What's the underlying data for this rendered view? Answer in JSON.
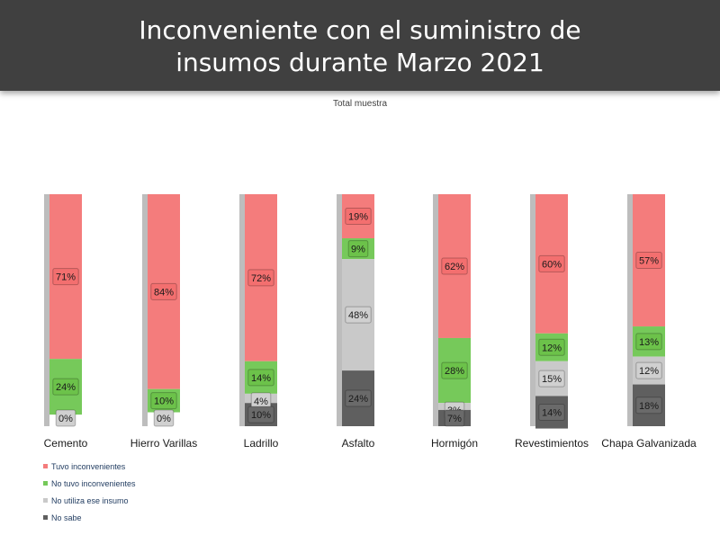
{
  "header": {
    "title": "Inconveniente con el suministro de\ninsumos durante Marzo 2021",
    "subtitle": "Total muestra"
  },
  "colors": {
    "tuvo": "#f47c7c",
    "tuvo_label_bg": "#f36f6f",
    "no_tuvo": "#76c95a",
    "no_tuvo_label_bg": "#6cc24a",
    "no_utiliza": "#c9c9c9",
    "no_utiliza_label_bg": "#d0d0d0",
    "no_sabe": "#5f5f5f",
    "no_sabe_label_bg": "#6a6a6a",
    "header_bg": "#404040"
  },
  "chart_data": {
    "type": "bar",
    "stacked": true,
    "percent": true,
    "categories": [
      "Cemento",
      "Hierro Varillas",
      "Ladrillo",
      "Asfalto",
      "Hormigón",
      "Revestimientos",
      "Chapa Galvanizada"
    ],
    "series": [
      {
        "name": "Tuvo inconvenientes",
        "values": [
          71,
          84,
          72,
          19,
          62,
          60,
          57
        ]
      },
      {
        "name": "No tuvo inconvenientes",
        "values": [
          24,
          10,
          14,
          9,
          28,
          12,
          13
        ]
      },
      {
        "name": "No utiliza ese insumo",
        "values": [
          0,
          0,
          4,
          48,
          3,
          15,
          12
        ]
      },
      {
        "name": "No sabe",
        "values": [
          null,
          null,
          10,
          24,
          7,
          14,
          18
        ]
      }
    ],
    "legend_position": "bottom-left",
    "ylim": [
      0,
      100
    ],
    "title": "Inconveniente con el suministro de insumos durante Marzo 2021",
    "subtitle": "Total muestra"
  }
}
